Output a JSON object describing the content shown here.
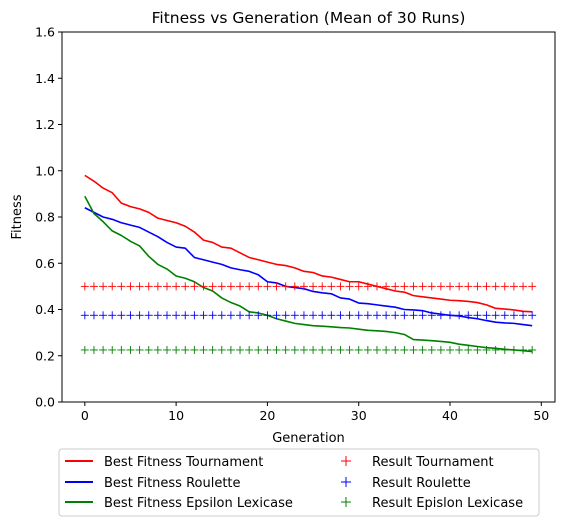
{
  "chart_data": {
    "type": "line",
    "title": "Fitness vs Generation (Mean of 30 Runs)",
    "xlabel": "Generation",
    "ylabel": "Fitness",
    "xlim": [
      -2.5,
      51.5
    ],
    "ylim": [
      0.0,
      1.6
    ],
    "xticks": [
      0,
      10,
      20,
      30,
      40,
      50
    ],
    "yticks": [
      0.0,
      0.2,
      0.4,
      0.6,
      0.8,
      1.0,
      1.2,
      1.4,
      1.6
    ],
    "xtick_labels": [
      "0",
      "10",
      "20",
      "30",
      "40",
      "50"
    ],
    "ytick_labels": [
      "0.0",
      "0.2",
      "0.4",
      "0.6",
      "0.8",
      "1.0",
      "1.2",
      "1.4",
      "1.6"
    ],
    "grid": false,
    "legend_position": "below plot, two columns",
    "x": [
      0,
      1,
      2,
      3,
      4,
      5,
      6,
      7,
      8,
      9,
      10,
      11,
      12,
      13,
      14,
      15,
      16,
      17,
      18,
      19,
      20,
      21,
      22,
      23,
      24,
      25,
      26,
      27,
      28,
      29,
      30,
      31,
      32,
      33,
      34,
      35,
      36,
      37,
      38,
      39,
      40,
      41,
      42,
      43,
      44,
      45,
      46,
      47,
      48,
      49
    ],
    "series": [
      {
        "name": "Best Fitness Tournament",
        "kind": "line",
        "color": "#ff0000",
        "values": [
          0.98,
          0.955,
          0.925,
          0.905,
          0.86,
          0.845,
          0.835,
          0.82,
          0.795,
          0.785,
          0.775,
          0.76,
          0.735,
          0.7,
          0.69,
          0.67,
          0.665,
          0.645,
          0.625,
          0.615,
          0.605,
          0.595,
          0.59,
          0.58,
          0.565,
          0.56,
          0.545,
          0.54,
          0.53,
          0.52,
          0.52,
          0.51,
          0.5,
          0.49,
          0.48,
          0.475,
          0.46,
          0.455,
          0.45,
          0.445,
          0.44,
          0.438,
          0.435,
          0.43,
          0.42,
          0.405,
          0.402,
          0.398,
          0.392,
          0.39
        ]
      },
      {
        "name": "Best Fitness Roulette",
        "kind": "line",
        "color": "#0000ff",
        "values": [
          0.84,
          0.82,
          0.8,
          0.79,
          0.775,
          0.765,
          0.755,
          0.735,
          0.715,
          0.69,
          0.67,
          0.665,
          0.625,
          0.615,
          0.605,
          0.595,
          0.58,
          0.572,
          0.565,
          0.55,
          0.52,
          0.515,
          0.5,
          0.495,
          0.49,
          0.478,
          0.472,
          0.468,
          0.45,
          0.445,
          0.428,
          0.425,
          0.42,
          0.415,
          0.41,
          0.4,
          0.398,
          0.395,
          0.385,
          0.38,
          0.375,
          0.372,
          0.365,
          0.36,
          0.352,
          0.345,
          0.342,
          0.34,
          0.335,
          0.33
        ]
      },
      {
        "name": "Best Fitness Epsilon Lexicase",
        "kind": "line",
        "color": "#008000",
        "values": [
          0.89,
          0.815,
          0.78,
          0.74,
          0.72,
          0.695,
          0.675,
          0.63,
          0.595,
          0.575,
          0.545,
          0.535,
          0.52,
          0.495,
          0.48,
          0.45,
          0.43,
          0.415,
          0.39,
          0.385,
          0.375,
          0.36,
          0.35,
          0.34,
          0.335,
          0.33,
          0.328,
          0.325,
          0.322,
          0.32,
          0.315,
          0.31,
          0.308,
          0.305,
          0.3,
          0.292,
          0.27,
          0.268,
          0.265,
          0.262,
          0.258,
          0.25,
          0.245,
          0.24,
          0.235,
          0.232,
          0.228,
          0.225,
          0.222,
          0.218
        ]
      },
      {
        "name": "Result Tournament",
        "kind": "marker",
        "marker": "+",
        "color": "#ff0000",
        "values": [
          0.5,
          0.5,
          0.5,
          0.5,
          0.5,
          0.5,
          0.5,
          0.5,
          0.5,
          0.5,
          0.5,
          0.5,
          0.5,
          0.5,
          0.5,
          0.5,
          0.5,
          0.5,
          0.5,
          0.5,
          0.5,
          0.5,
          0.5,
          0.5,
          0.5,
          0.5,
          0.5,
          0.5,
          0.5,
          0.5,
          0.5,
          0.5,
          0.5,
          0.5,
          0.5,
          0.5,
          0.5,
          0.5,
          0.5,
          0.5,
          0.5,
          0.5,
          0.5,
          0.5,
          0.5,
          0.5,
          0.5,
          0.5,
          0.5,
          0.5
        ]
      },
      {
        "name": "Result Roulette",
        "kind": "marker",
        "marker": "+",
        "color": "#0000ff",
        "values": [
          0.375,
          0.375,
          0.375,
          0.375,
          0.375,
          0.375,
          0.375,
          0.375,
          0.375,
          0.375,
          0.375,
          0.375,
          0.375,
          0.375,
          0.375,
          0.375,
          0.375,
          0.375,
          0.375,
          0.375,
          0.375,
          0.375,
          0.375,
          0.375,
          0.375,
          0.375,
          0.375,
          0.375,
          0.375,
          0.375,
          0.375,
          0.375,
          0.375,
          0.375,
          0.375,
          0.375,
          0.375,
          0.375,
          0.375,
          0.375,
          0.375,
          0.375,
          0.375,
          0.375,
          0.375,
          0.375,
          0.375,
          0.375,
          0.375,
          0.375
        ]
      },
      {
        "name": "Result Epislon Lexicase",
        "kind": "marker",
        "marker": "+",
        "color": "#008000",
        "values": [
          0.225,
          0.225,
          0.225,
          0.225,
          0.225,
          0.225,
          0.225,
          0.225,
          0.225,
          0.225,
          0.225,
          0.225,
          0.225,
          0.225,
          0.225,
          0.225,
          0.225,
          0.225,
          0.225,
          0.225,
          0.225,
          0.225,
          0.225,
          0.225,
          0.225,
          0.225,
          0.225,
          0.225,
          0.225,
          0.225,
          0.225,
          0.225,
          0.225,
          0.225,
          0.225,
          0.225,
          0.225,
          0.225,
          0.225,
          0.225,
          0.225,
          0.225,
          0.225,
          0.225,
          0.225,
          0.225,
          0.225,
          0.225,
          0.225,
          0.225
        ]
      }
    ]
  }
}
